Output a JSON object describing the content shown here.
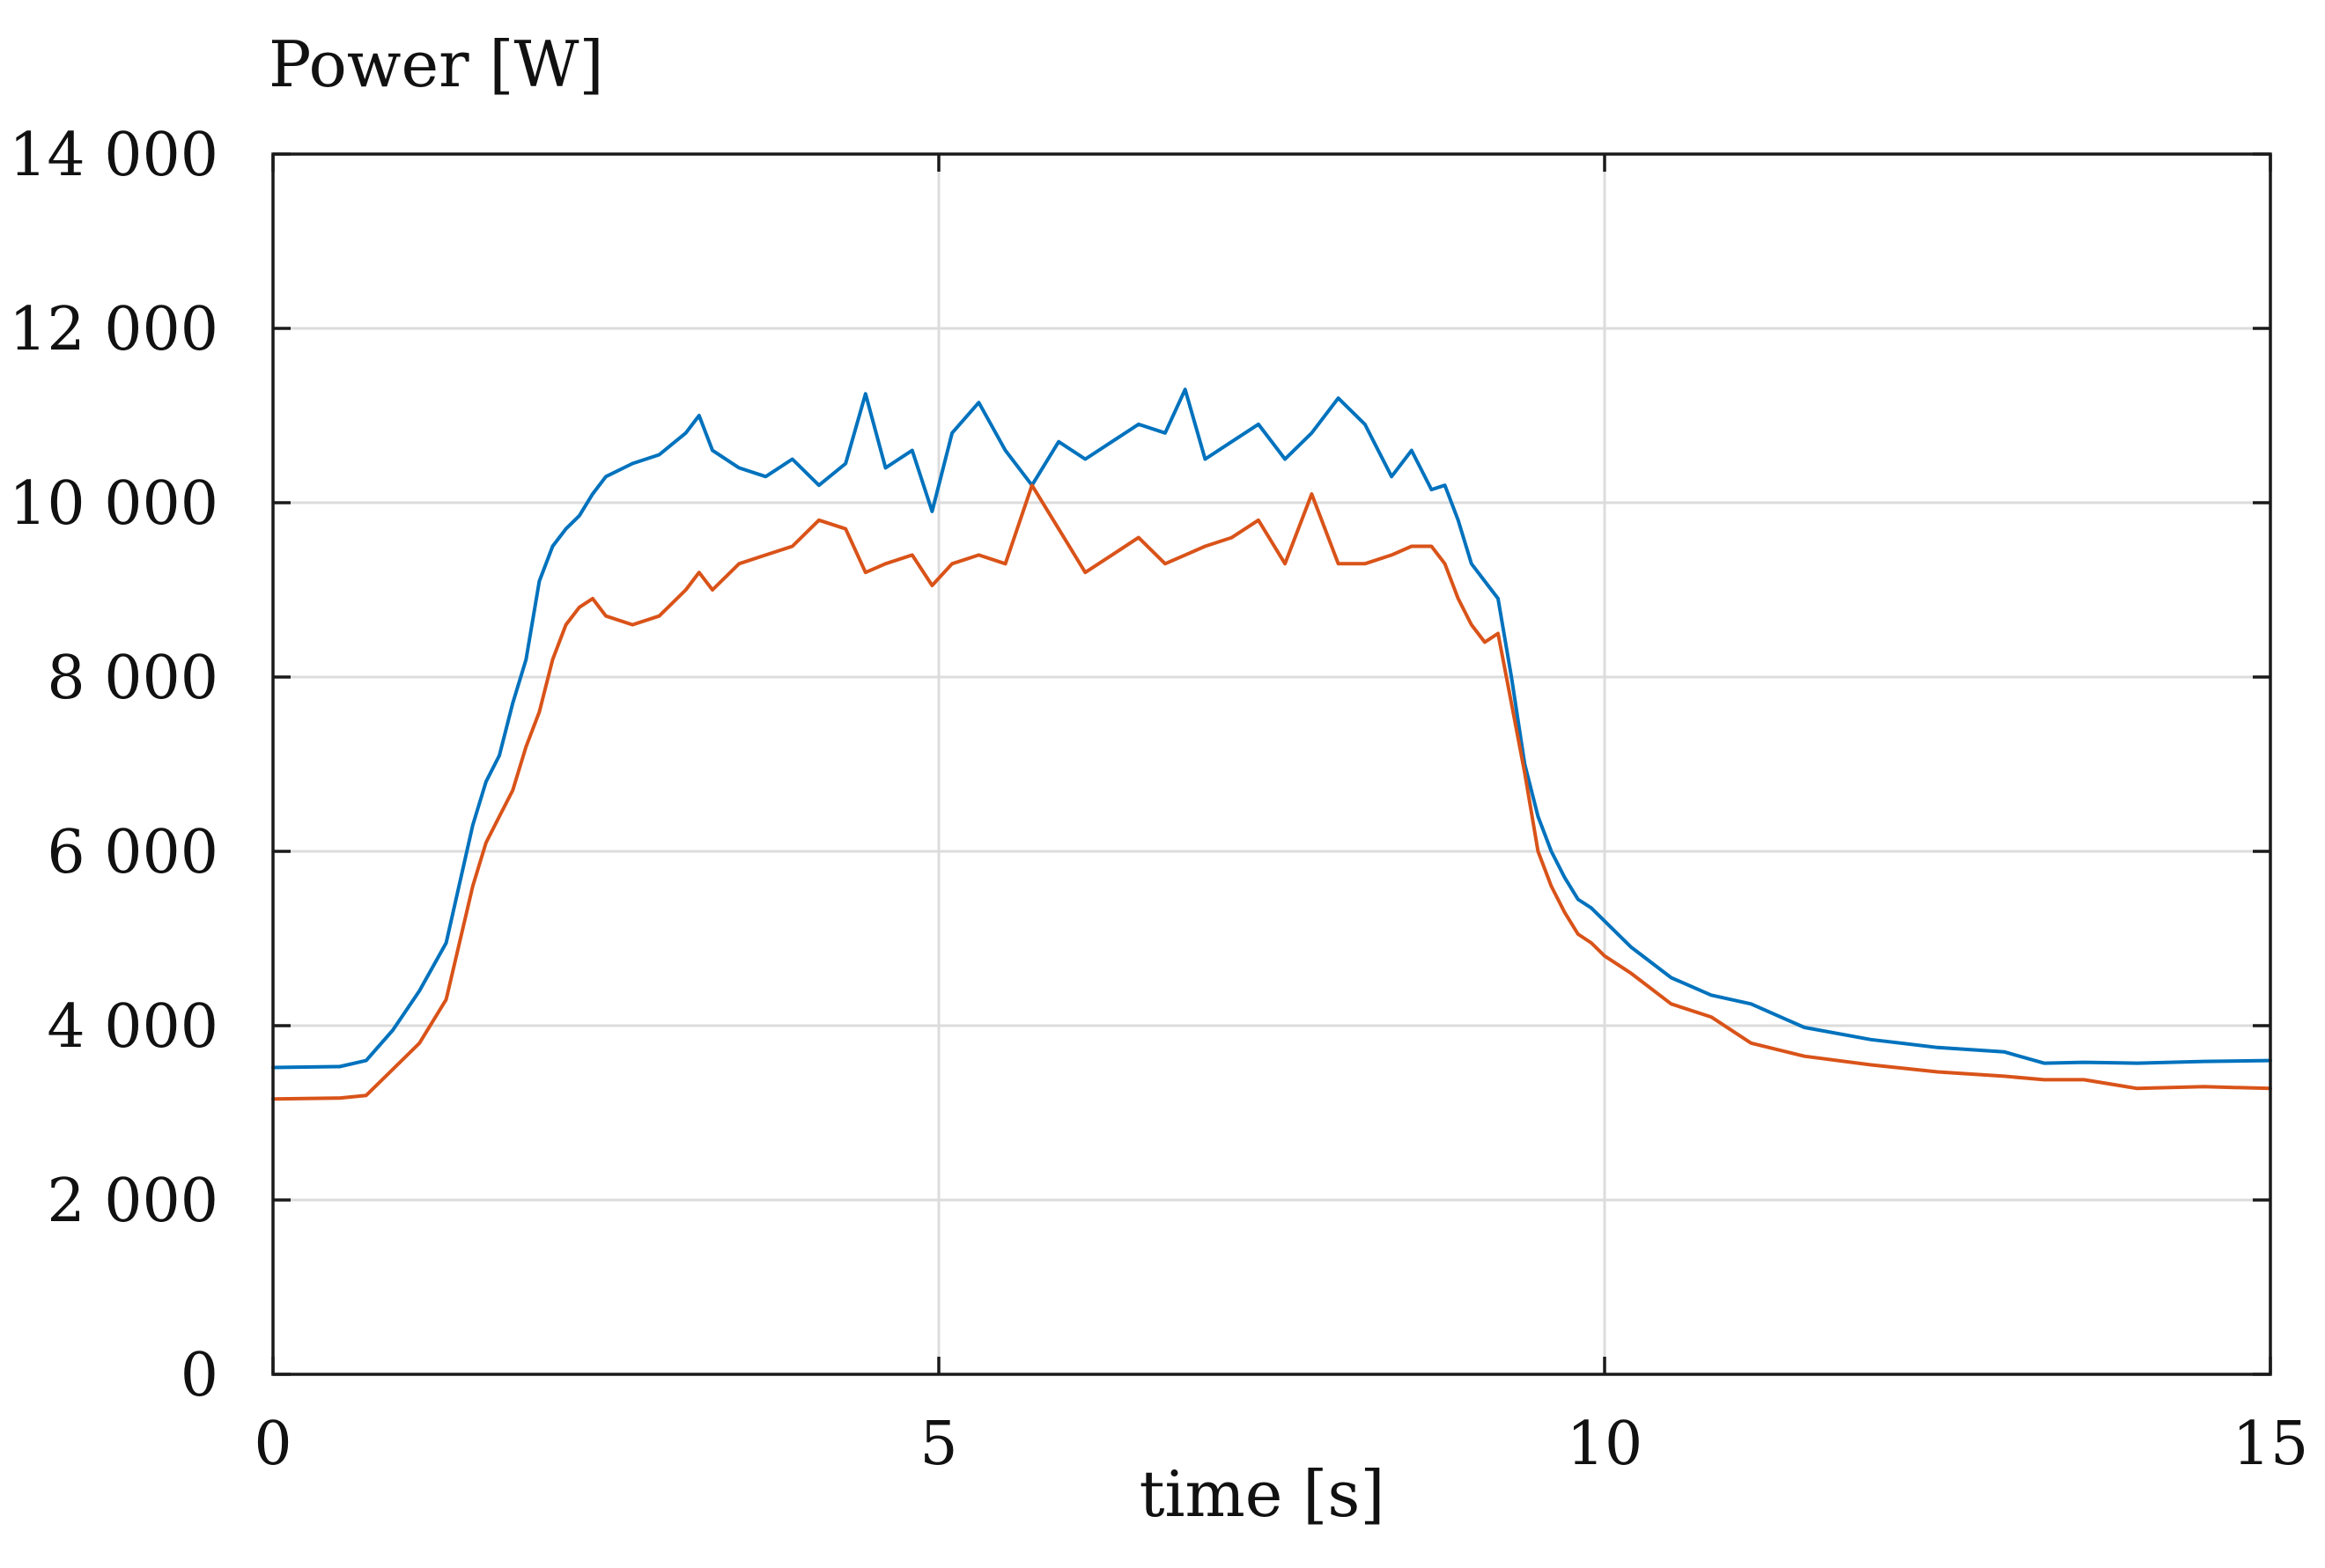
{
  "chart_data": {
    "type": "line",
    "title": "",
    "ylabel": "Power [W]",
    "xlabel": "time [s]",
    "xlim": [
      0,
      15
    ],
    "ylim": [
      0,
      14000
    ],
    "x_ticks": [
      0,
      5,
      10,
      15
    ],
    "x_tick_labels": [
      "0",
      "5",
      "10",
      "15"
    ],
    "y_ticks": [
      0,
      2000,
      4000,
      6000,
      8000,
      10000,
      12000,
      14000
    ],
    "y_tick_labels": [
      "0",
      "2 000",
      "4 000",
      "6 000",
      "8 000",
      "10 000",
      "12 000",
      "14 000"
    ],
    "grid": true,
    "series": [
      {
        "name": "series-blue",
        "color": "#0072bd",
        "x": [
          0,
          0.5,
          0.7,
          0.9,
          1.1,
          1.3,
          1.5,
          1.6,
          1.7,
          1.8,
          1.9,
          2.0,
          2.1,
          2.2,
          2.3,
          2.4,
          2.5,
          2.7,
          2.9,
          3.1,
          3.2,
          3.3,
          3.5,
          3.7,
          3.9,
          4.1,
          4.3,
          4.45,
          4.6,
          4.8,
          4.95,
          5.1,
          5.3,
          5.5,
          5.7,
          5.9,
          6.1,
          6.3,
          6.5,
          6.7,
          6.85,
          7.0,
          7.2,
          7.4,
          7.6,
          7.8,
          8.0,
          8.2,
          8.4,
          8.55,
          8.7,
          8.8,
          8.9,
          9.0,
          9.1,
          9.2,
          9.3,
          9.4,
          9.5,
          9.6,
          9.7,
          9.8,
          9.9,
          10.0,
          10.2,
          10.5,
          10.8,
          11.1,
          11.5,
          12.0,
          12.5,
          13.0,
          13.3,
          13.6,
          14.0,
          14.5,
          15.0
        ],
        "values": [
          3520,
          3530,
          3600,
          3950,
          4400,
          4950,
          6300,
          6800,
          7100,
          7700,
          8200,
          9100,
          9500,
          9700,
          9850,
          10100,
          10300,
          10450,
          10550,
          10800,
          11000,
          10600,
          10400,
          10300,
          10500,
          10200,
          10450,
          11250,
          10400,
          10600,
          9900,
          10800,
          11150,
          10600,
          10200,
          10700,
          10500,
          10700,
          10900,
          10800,
          11300,
          10500,
          10700,
          10900,
          10500,
          10800,
          11200,
          10900,
          10300,
          10600,
          10150,
          10200,
          9800,
          9300,
          9100,
          8900,
          8000,
          7000,
          6400,
          6000,
          5700,
          5450,
          5350,
          5200,
          4900,
          4550,
          4350,
          4250,
          3980,
          3840,
          3750,
          3700,
          3570,
          3580,
          3570,
          3590,
          3600
        ]
      },
      {
        "name": "series-orange",
        "color": "#d95319",
        "x": [
          0,
          0.5,
          0.7,
          0.9,
          1.1,
          1.3,
          1.5,
          1.6,
          1.7,
          1.8,
          1.9,
          2.0,
          2.1,
          2.2,
          2.3,
          2.4,
          2.5,
          2.7,
          2.9,
          3.1,
          3.2,
          3.3,
          3.5,
          3.7,
          3.9,
          4.1,
          4.3,
          4.45,
          4.6,
          4.8,
          4.95,
          5.1,
          5.3,
          5.5,
          5.7,
          5.9,
          6.1,
          6.3,
          6.5,
          6.7,
          6.85,
          7.0,
          7.2,
          7.4,
          7.6,
          7.8,
          8.0,
          8.2,
          8.4,
          8.55,
          8.7,
          8.8,
          8.9,
          9.0,
          9.1,
          9.2,
          9.3,
          9.4,
          9.5,
          9.6,
          9.7,
          9.8,
          9.9,
          10.0,
          10.2,
          10.5,
          10.8,
          11.1,
          11.5,
          12.0,
          12.5,
          13.0,
          13.3,
          13.6,
          14.0,
          14.5,
          15.0
        ],
        "values": [
          3160,
          3170,
          3200,
          3500,
          3800,
          4300,
          5600,
          6100,
          6400,
          6700,
          7200,
          7600,
          8200,
          8600,
          8800,
          8900,
          8700,
          8600,
          8700,
          9000,
          9200,
          9000,
          9300,
          9400,
          9500,
          9800,
          9700,
          9200,
          9300,
          9400,
          9050,
          9300,
          9400,
          9300,
          10200,
          9700,
          9200,
          9400,
          9600,
          9300,
          9400,
          9500,
          9600,
          9800,
          9300,
          10100,
          9300,
          9300,
          9400,
          9500,
          9500,
          9300,
          8900,
          8600,
          8400,
          8500,
          7700,
          6900,
          6000,
          5600,
          5300,
          5050,
          4950,
          4800,
          4600,
          4250,
          4100,
          3800,
          3650,
          3550,
          3470,
          3420,
          3380,
          3380,
          3280,
          3300,
          3280
        ]
      }
    ]
  }
}
